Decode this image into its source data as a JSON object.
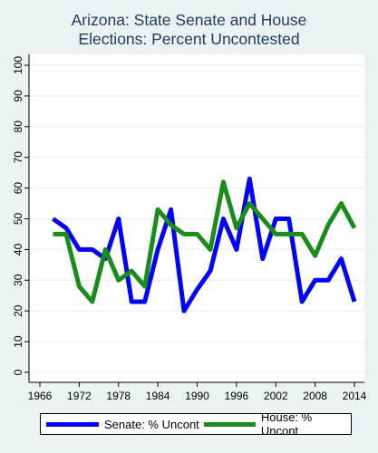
{
  "chart_data": {
    "type": "line",
    "title_lines": [
      "Arizona: State Senate and House",
      "Elections: Percent Uncontested"
    ],
    "xlabel": "",
    "ylabel": "",
    "xlim": [
      1966,
      2014
    ],
    "ylim": [
      0,
      100
    ],
    "x_ticks": [
      1966,
      1972,
      1978,
      1984,
      1990,
      1996,
      2002,
      2008,
      2014
    ],
    "y_ticks": [
      0,
      10,
      20,
      30,
      40,
      50,
      60,
      70,
      80,
      90,
      100
    ],
    "grid": "horizontal",
    "legend_position": "bottom",
    "series": [
      {
        "name": "Senate: % Uncont",
        "color": "#0000ff",
        "x": [
          1968,
          1970,
          1972,
          1974,
          1976,
          1978,
          1980,
          1982,
          1984,
          1986,
          1988,
          1990,
          1992,
          1994,
          1996,
          1998,
          2000,
          2002,
          2004,
          2006,
          2008,
          2010,
          2012,
          2014
        ],
        "values": [
          50,
          47,
          40,
          40,
          37,
          50,
          23,
          23,
          40,
          53,
          20,
          27,
          33,
          50,
          40,
          63,
          37,
          50,
          50,
          23,
          30,
          30,
          37,
          23
        ]
      },
      {
        "name": "House: % Uncont",
        "color": "#1a8c1a",
        "x": [
          1968,
          1970,
          1972,
          1974,
          1976,
          1978,
          1980,
          1982,
          1984,
          1986,
          1988,
          1990,
          1992,
          1994,
          1996,
          1998,
          2000,
          2002,
          2004,
          2006,
          2008,
          2010,
          2012,
          2014
        ],
        "values": [
          45,
          45,
          28,
          23,
          40,
          30,
          33,
          28,
          53,
          48,
          45,
          45,
          40,
          62,
          47,
          55,
          50,
          45,
          45,
          45,
          38,
          48,
          55,
          47
        ]
      }
    ]
  }
}
